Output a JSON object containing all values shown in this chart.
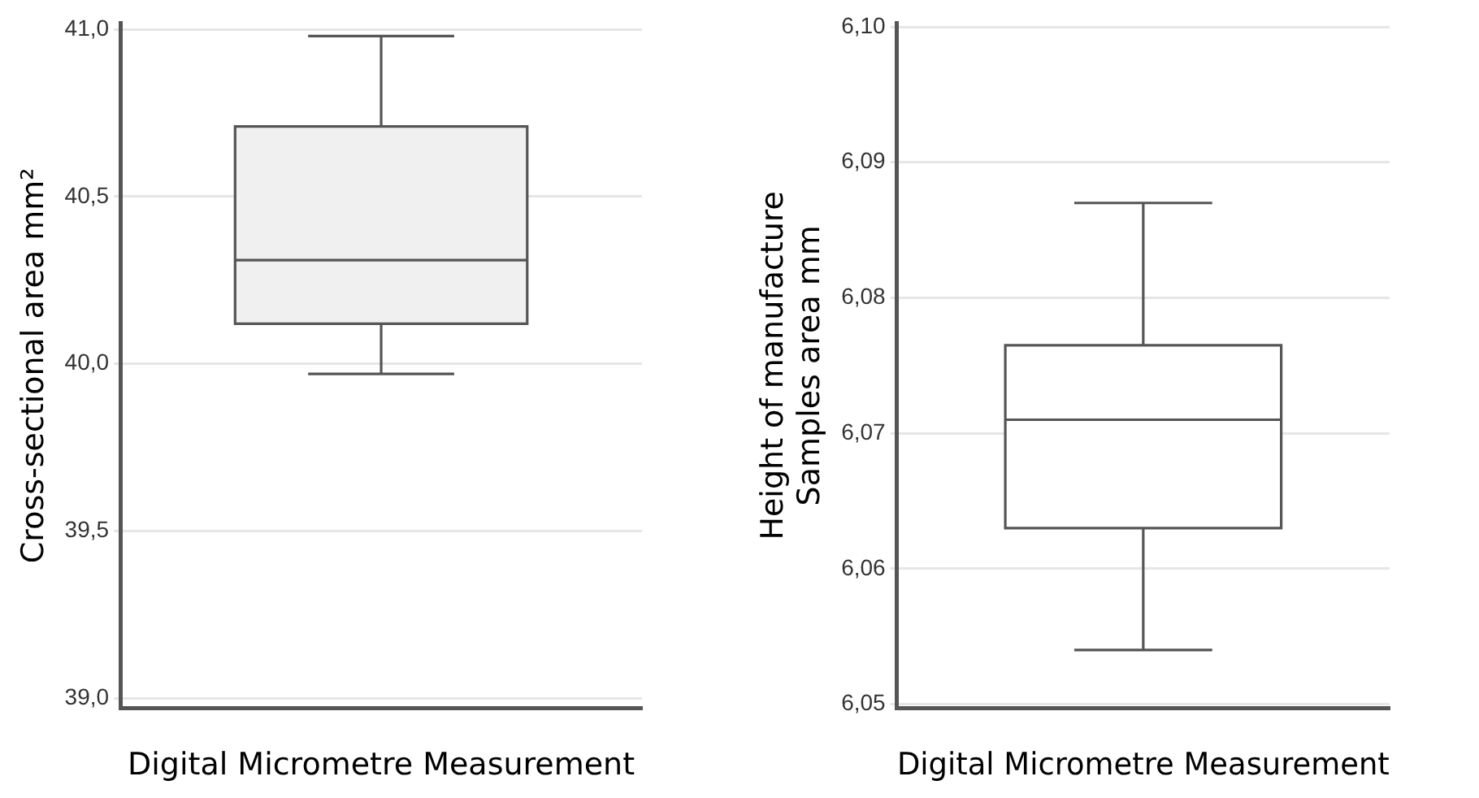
{
  "chart_data": [
    {
      "type": "box",
      "ylabel": "Cross-sectional area mm²",
      "xlabel": "Digital Micrometre Measurement",
      "categories": [
        null
      ],
      "color": "#f0f0f0",
      "boxes": [
        {
          "low": 39.97,
          "q1": 40.12,
          "median": 40.31,
          "q3": 40.71,
          "high": 40.98
        }
      ],
      "ylim": [
        38.97,
        41.02
      ],
      "yticks": [
        {
          "value": 39,
          "label": "39,0"
        },
        {
          "value": 39.5,
          "label": "39,5"
        },
        {
          "value": 40,
          "label": "40,0"
        },
        {
          "value": 40.5,
          "label": "40,5"
        },
        {
          "value": 41,
          "label": "41,0"
        }
      ],
      "grid": "y"
    },
    {
      "type": "box",
      "ylabel": "Height of manufacture\nSamples area mm",
      "xlabel": "Digital Micrometre Measurement",
      "categories": [
        null
      ],
      "color": "#ffffff",
      "boxes": [
        {
          "low": 6.054,
          "q1": 6.063,
          "median": 6.071,
          "q3": 6.0765,
          "high": 6.087
        }
      ],
      "ylim": [
        6.0497,
        6.1003
      ],
      "yticks": [
        {
          "value": 6.05,
          "label": "6,05"
        },
        {
          "value": 6.06,
          "label": "6,06"
        },
        {
          "value": 6.07,
          "label": "6,07"
        },
        {
          "value": 6.08,
          "label": "6,08"
        },
        {
          "value": 6.09,
          "label": "6,09"
        },
        {
          "value": 6.1,
          "label": "6,10"
        }
      ],
      "grid": "y"
    }
  ]
}
